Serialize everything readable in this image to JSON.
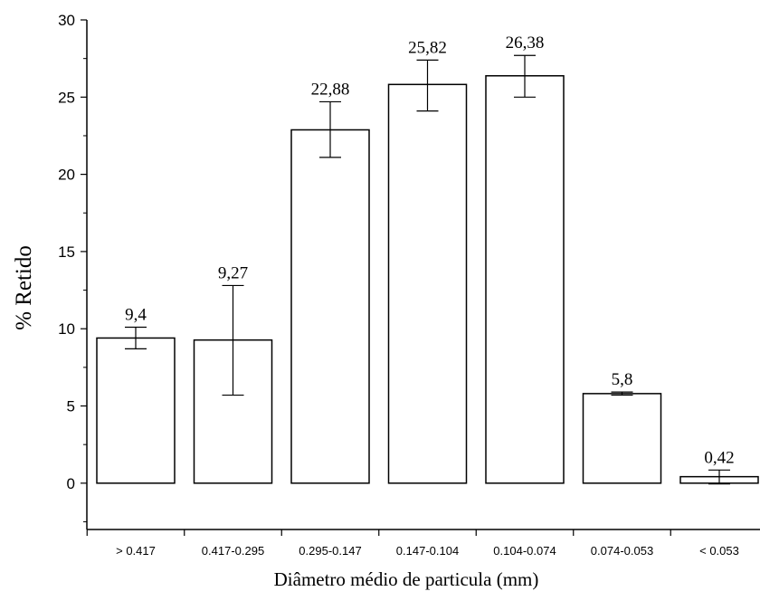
{
  "chart_data": {
    "type": "bar",
    "title": "",
    "xlabel": "Diâmetro médio de particula (mm)",
    "ylabel": "% Retido",
    "ylim": [
      -3,
      30
    ],
    "yticks": [
      0,
      5,
      10,
      15,
      20,
      25,
      30
    ],
    "categories": [
      "> 0.417",
      "0.417-0.295",
      "0.295-0.147",
      "0.147-0.104",
      "0.104-0.074",
      "0.074-0.053",
      "< 0.053"
    ],
    "values": [
      9.4,
      9.27,
      22.88,
      25.82,
      26.38,
      5.8,
      0.42
    ],
    "value_labels": [
      "9,4",
      "9,27",
      "22,88",
      "25,82",
      "26,38",
      "5,8",
      "0,42"
    ],
    "error_bars": [
      {
        "low": 8.7,
        "high": 10.1
      },
      {
        "low": 5.7,
        "high": 12.8
      },
      {
        "low": 21.1,
        "high": 24.7
      },
      {
        "low": 24.1,
        "high": 27.4
      },
      {
        "low": 25.0,
        "high": 27.7
      },
      {
        "low": 5.7,
        "high": 5.9
      },
      {
        "low": -0.05,
        "high": 0.85
      }
    ],
    "colors": {
      "bar_fill": "#ffffff",
      "bar_stroke": "#000000",
      "axis": "#000000",
      "text": "#000000"
    },
    "grid": false,
    "legend": "none"
  }
}
